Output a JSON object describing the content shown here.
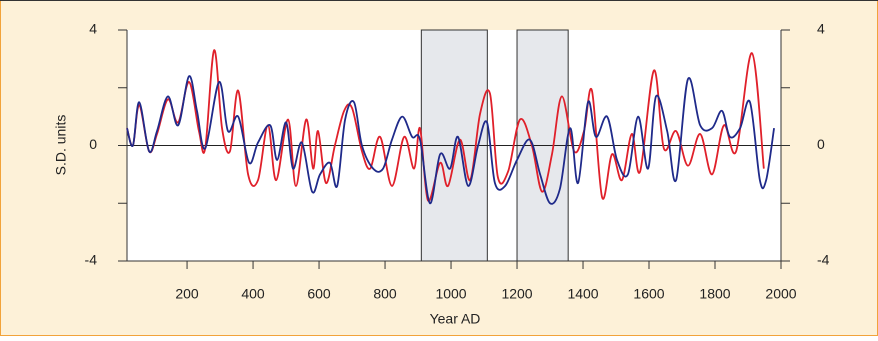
{
  "chart_data": {
    "type": "line",
    "x_label": "Year AD",
    "y_label": "S.D. units",
    "xlim": [
      18,
      2000
    ],
    "xticks": [
      200,
      400,
      600,
      800,
      1000,
      1200,
      1400,
      1600,
      1800,
      2000
    ],
    "ylim": [
      -4,
      4
    ],
    "yticks": [
      -4,
      0,
      4
    ],
    "yminor_ticks": [
      -2,
      2
    ],
    "zero_line": true,
    "right_axis_labels": true,
    "shaded_spans": [
      [
        910,
        1110
      ],
      [
        1200,
        1355
      ]
    ],
    "series": [
      {
        "name": "red",
        "color": "#e0202a",
        "x": [
          18,
          36,
          55,
          85,
          109,
          142,
          173,
          206,
          236,
          255,
          282,
          306,
          330,
          355,
          385,
          415,
          445,
          470,
          506,
          530,
          561,
          582,
          597,
          621,
          648,
          676,
          700,
          730,
          755,
          785,
          821,
          858,
          888,
          906,
          930,
          967,
          991,
          1027,
          1058,
          1088,
          1118,
          1142,
          1173,
          1209,
          1245,
          1276,
          1306,
          1336,
          1373,
          1403,
          1427,
          1458,
          1488,
          1518,
          1548,
          1573,
          1615,
          1645,
          1682,
          1718,
          1755,
          1791,
          1827,
          1864,
          1912,
          1948
        ],
        "values": [
          0.6,
          0,
          1.4,
          -0.2,
          0.4,
          1.6,
          0.8,
          2.2,
          0.5,
          -0.1,
          3.3,
          0.6,
          -0.2,
          1.9,
          -1.0,
          -1.2,
          0.7,
          -1.2,
          0.9,
          -1.4,
          0.9,
          -0.8,
          0.5,
          -1.3,
          0.0,
          1.2,
          1.3,
          -0.2,
          -0.8,
          0.3,
          -1.4,
          0.3,
          -0.8,
          0.6,
          -1.9,
          -0.6,
          -1.4,
          0.2,
          -1.2,
          1.1,
          1.8,
          -1.1,
          -0.9,
          0.9,
          0.0,
          -1.6,
          -0.3,
          1.7,
          -0.2,
          0.5,
          1.9,
          -1.8,
          -0.3,
          -1.2,
          0.4,
          -0.9,
          2.6,
          -0.1,
          0.5,
          -0.7,
          0.4,
          -1.0,
          0.7,
          -0.2,
          3.2,
          -0.8
        ]
      },
      {
        "name": "blue",
        "color": "#1f2a8a",
        "x": [
          18,
          36,
          55,
          85,
          109,
          142,
          173,
          206,
          230,
          255,
          297,
          324,
          355,
          388,
          415,
          452,
          473,
          500,
          521,
          548,
          579,
          603,
          633,
          655,
          679,
          706,
          730,
          764,
          794,
          821,
          852,
          882,
          906,
          936,
          967,
          997,
          1021,
          1052,
          1082,
          1109,
          1133,
          1164,
          1200,
          1239,
          1270,
          1300,
          1330,
          1361,
          1385,
          1415,
          1439,
          1473,
          1503,
          1536,
          1567,
          1597,
          1621,
          1655,
          1682,
          1718,
          1755,
          1791,
          1821,
          1845,
          1876,
          1906,
          1936,
          1955,
          1979
        ],
        "values": [
          0.6,
          0,
          1.5,
          -0.2,
          0.5,
          1.7,
          0.7,
          2.4,
          1.2,
          -0.1,
          2.2,
          0.5,
          1.0,
          -0.6,
          0.1,
          0.7,
          -0.5,
          0.8,
          -0.8,
          0.1,
          -1.6,
          -1.0,
          -0.6,
          -1.4,
          0.9,
          1.5,
          0.0,
          -0.8,
          -0.8,
          0.2,
          1.0,
          0.3,
          0.2,
          -2.0,
          -0.3,
          -0.8,
          0.3,
          -1.4,
          0.0,
          0.8,
          -1.3,
          -1.4,
          -0.5,
          0.2,
          -1.0,
          -2.0,
          -1.5,
          0.6,
          -1.3,
          1.5,
          0.3,
          1.0,
          -0.5,
          -1.0,
          1.0,
          -0.8,
          1.7,
          0.5,
          -1.2,
          2.3,
          0.7,
          0.6,
          1.2,
          0.3,
          0.6,
          1.5,
          -1.2,
          -1.2,
          0.6
        ]
      }
    ]
  }
}
